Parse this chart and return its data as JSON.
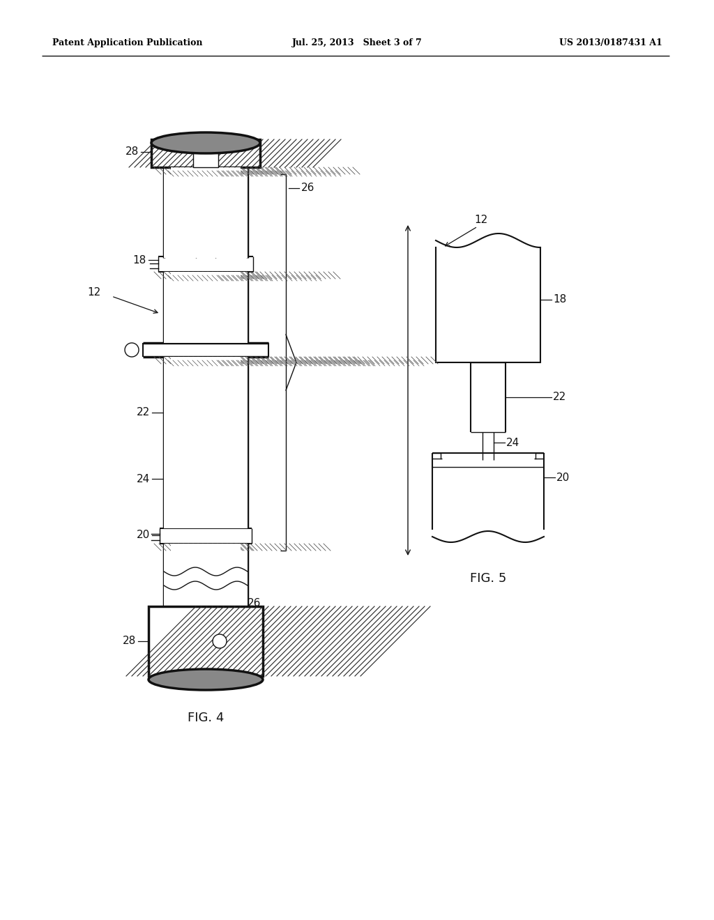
{
  "bg_color": "#ffffff",
  "header_left": "Patent Application Publication",
  "header_center": "Jul. 25, 2013   Sheet 3 of 7",
  "header_right": "US 2013/0187431 A1",
  "fig4_label": "FIG. 4",
  "fig5_label": "FIG. 5",
  "color_main": "#111111",
  "color_hatch": "#555555",
  "color_dark_hatch": "#222222"
}
